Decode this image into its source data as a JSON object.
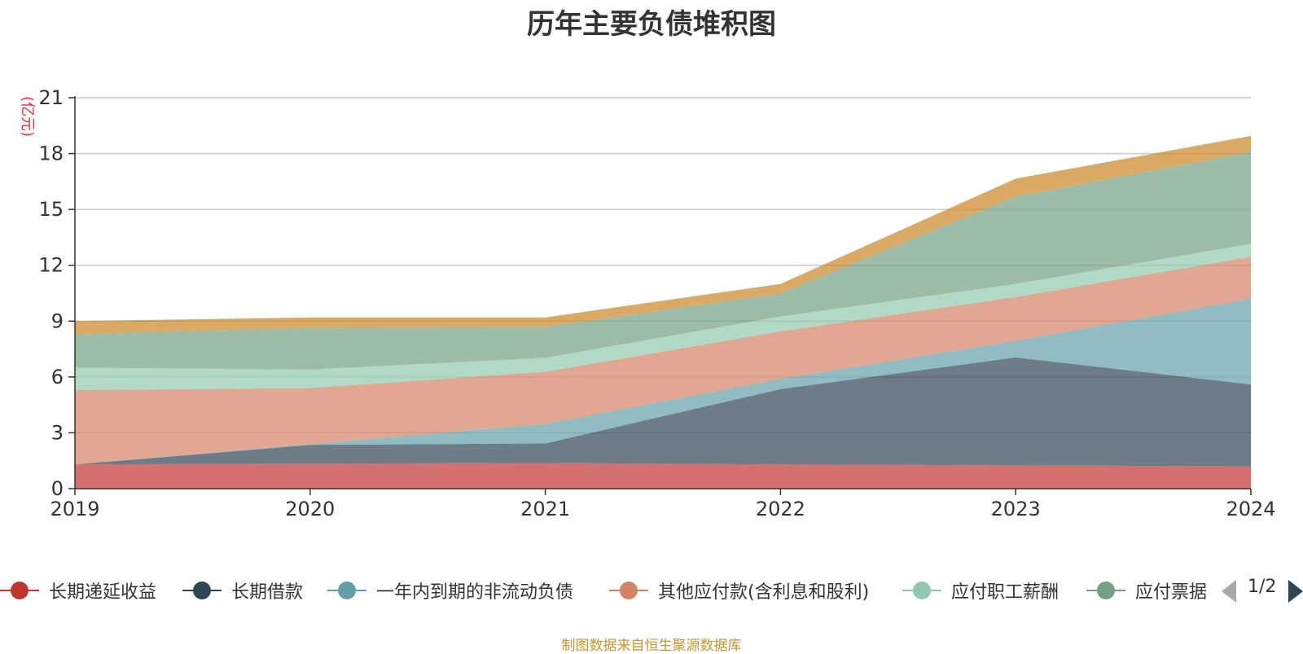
{
  "chart_data": {
    "type": "area",
    "title": "历年主要负债堆积图",
    "ylabel": "(亿元)",
    "xlabel": "",
    "stacked": true,
    "categories": [
      "2019",
      "2020",
      "2021",
      "2022",
      "2023",
      "2024"
    ],
    "ylim": [
      0,
      21
    ],
    "yticks": [
      0,
      3,
      6,
      9,
      12,
      15,
      18,
      21
    ],
    "grid": true,
    "legend_position": "bottom",
    "series": [
      {
        "name": "长期递延收益",
        "color": "#c23531",
        "values": [
          1.3,
          1.35,
          1.38,
          1.3,
          1.25,
          1.2
        ]
      },
      {
        "name": "长期借款",
        "color": "#2f4554",
        "values": [
          0.0,
          1.0,
          1.05,
          4.05,
          5.8,
          4.4
        ]
      },
      {
        "name": "一年内到期的非流动负债",
        "color": "#61a0a8",
        "values": [
          0.0,
          0.05,
          1.05,
          0.55,
          0.9,
          4.6
        ]
      },
      {
        "name": "其他应付款(含利息和股利)",
        "color": "#d48265",
        "values": [
          4.0,
          3.0,
          2.8,
          2.55,
          2.35,
          2.25
        ]
      },
      {
        "name": "应付职工薪酬",
        "color": "#91c7ae",
        "values": [
          1.2,
          1.0,
          0.75,
          0.8,
          0.7,
          0.7
        ]
      },
      {
        "name": "应付票据",
        "color": "#749f83",
        "values": [
          1.8,
          2.25,
          1.67,
          1.25,
          4.7,
          4.95
        ]
      },
      {
        "name": "",
        "color": "#ca8622",
        "values": [
          0.7,
          0.55,
          0.5,
          0.5,
          0.95,
          0.85
        ]
      }
    ]
  },
  "legend": {
    "pager_text": "1/2"
  },
  "source_note": "制图数据来自恒生聚源数据库"
}
